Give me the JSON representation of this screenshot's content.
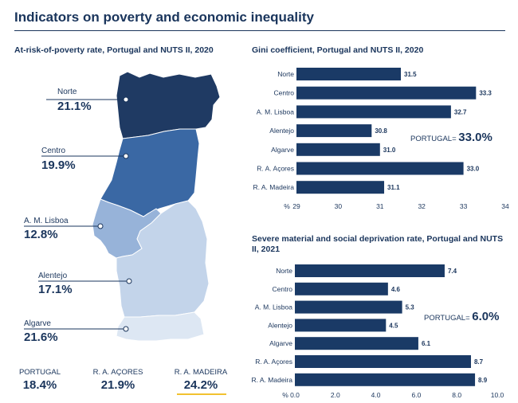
{
  "title": "Indicators on poverty and economic inequality",
  "map_panel": {
    "title": "At-risk-of-poverty rate, Portugal and NUTS II, 2020",
    "regions": [
      {
        "name": "Norte",
        "value": "21.1%",
        "color": "#1f3a63"
      },
      {
        "name": "Centro",
        "value": "19.9%",
        "color": "#3a68a4"
      },
      {
        "name": "A. M. Lisboa",
        "value": "12.8%",
        "color": "#97b3d9"
      },
      {
        "name": "Alentejo",
        "value": "17.1%",
        "color": "#c3d4ea"
      },
      {
        "name": "Algarve",
        "value": "21.6%",
        "color": "#dde7f3"
      }
    ],
    "kpis": [
      {
        "label": "PORTUGAL",
        "value": "18.4%"
      },
      {
        "label": "R. A. AÇORES",
        "value": "21.9%"
      },
      {
        "label": "R. A. MADEIRA",
        "value": "24.2%"
      }
    ]
  },
  "chart_data": [
    {
      "type": "bar",
      "orientation": "horizontal",
      "title": "Gini coefficient, Portugal and NUTS II, 2020",
      "categories": [
        "Norte",
        "Centro",
        "A. M. Lisboa",
        "Alentejo",
        "Algarve",
        "R. A. Açores",
        "R. A. Madeira"
      ],
      "values": [
        31.5,
        33.3,
        32.7,
        30.8,
        31.0,
        33.0,
        31.1
      ],
      "value_labels": [
        "31.5",
        "33.3",
        "32.7",
        "30.8",
        "31.0",
        "33.0",
        "31.1"
      ],
      "xlim": [
        29,
        34
      ],
      "ticks": [
        "29",
        "30",
        "31",
        "32",
        "33",
        "34"
      ],
      "tick_values": [
        29,
        30,
        31,
        32,
        33,
        34
      ],
      "axis_unit": "%",
      "annotation_label": "PORTUGAL=",
      "annotation_value": "33.0%",
      "bar_color": "#1a3a66"
    },
    {
      "type": "bar",
      "orientation": "horizontal",
      "title": "Severe material and social deprivation rate, Portugal and NUTS II, 2021",
      "categories": [
        "Norte",
        "Centro",
        "A. M. Lisboa",
        "Alentejo",
        "Algarve",
        "R. A. Açores",
        "R. A. Madeira"
      ],
      "values": [
        7.4,
        4.6,
        5.3,
        4.5,
        6.1,
        8.7,
        8.9
      ],
      "value_labels": [
        "7.4",
        "4.6",
        "5.3",
        "4.5",
        "6.1",
        "8.7",
        "8.9"
      ],
      "xlim": [
        0,
        10
      ],
      "ticks": [
        "0.0",
        "2.0",
        "4.0",
        "6.0",
        "8.0",
        "10.0"
      ],
      "tick_values": [
        0,
        2,
        4,
        6,
        8,
        10
      ],
      "axis_unit": "%",
      "annotation_label": "PORTUGAL=",
      "annotation_value": "6.0%",
      "bar_color": "#1a3a66"
    }
  ]
}
